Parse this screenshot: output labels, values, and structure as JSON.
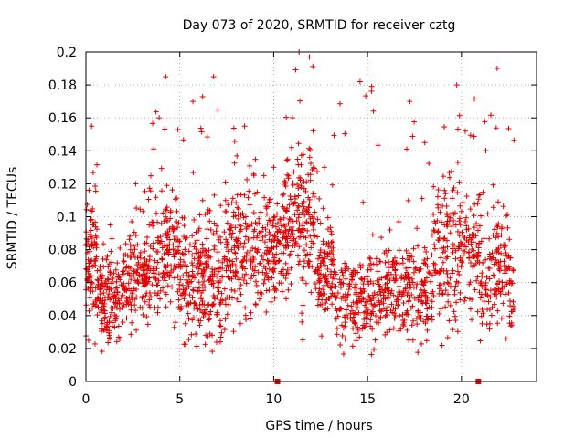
{
  "chart_data": {
    "type": "scatter",
    "title": "Day 073 of 2020, SRMTID for receiver cztg",
    "xlabel": "GPS time / hours",
    "ylabel": "SRMTID / TECUs",
    "xlim": [
      0,
      24
    ],
    "ylim": [
      0,
      0.2
    ],
    "xticks": [
      0,
      5,
      10,
      15,
      20
    ],
    "xtick_labels": [
      "0",
      "5",
      "10",
      "15",
      "20"
    ],
    "yticks": [
      0,
      0.02,
      0.04,
      0.06,
      0.08,
      0.1,
      0.12,
      0.14,
      0.16,
      0.18,
      0.2
    ],
    "ytick_labels": [
      "0",
      "0.02",
      "0.04",
      "0.06",
      "0.08",
      "0.1",
      "0.12",
      "0.14",
      "0.16",
      "0.18",
      "0.2"
    ],
    "grid": true,
    "marker": "+",
    "color": "#e00000",
    "series": [
      {
        "name": "SRMTID",
        "segments": [
          {
            "start": 0.0,
            "end": 0.6,
            "mean": 0.075,
            "spread": 0.025,
            "n": 90,
            "max": 0.155
          },
          {
            "start": 0.6,
            "end": 2.0,
            "mean": 0.05,
            "spread": 0.012,
            "n": 150,
            "max": 0.095
          },
          {
            "start": 2.0,
            "end": 3.3,
            "mean": 0.065,
            "spread": 0.015,
            "n": 140,
            "max": 0.12
          },
          {
            "start": 3.3,
            "end": 5.2,
            "mean": 0.075,
            "spread": 0.02,
            "n": 190,
            "max": 0.185
          },
          {
            "start": 5.2,
            "end": 6.2,
            "mean": 0.06,
            "spread": 0.018,
            "n": 110,
            "max": 0.17
          },
          {
            "start": 6.2,
            "end": 7.4,
            "mean": 0.06,
            "spread": 0.02,
            "n": 130,
            "max": 0.185
          },
          {
            "start": 7.4,
            "end": 9.5,
            "mean": 0.08,
            "spread": 0.02,
            "n": 200,
            "max": 0.155
          },
          {
            "start": 9.5,
            "end": 10.5,
            "mean": 0.08,
            "spread": 0.015,
            "n": 100,
            "max": 0.13
          },
          {
            "start": 10.5,
            "end": 12.2,
            "mean": 0.1,
            "spread": 0.025,
            "n": 200,
            "max": 0.2
          },
          {
            "start": 12.2,
            "end": 13.2,
            "mean": 0.07,
            "spread": 0.015,
            "n": 110,
            "max": 0.13
          },
          {
            "start": 13.2,
            "end": 16.0,
            "mean": 0.05,
            "spread": 0.013,
            "n": 240,
            "max": 0.182
          },
          {
            "start": 16.0,
            "end": 18.5,
            "mean": 0.055,
            "spread": 0.015,
            "n": 220,
            "max": 0.17
          },
          {
            "start": 18.5,
            "end": 21.0,
            "mean": 0.08,
            "spread": 0.022,
            "n": 230,
            "max": 0.18
          },
          {
            "start": 21.0,
            "end": 22.8,
            "mean": 0.065,
            "spread": 0.02,
            "n": 160,
            "max": 0.19
          }
        ]
      }
    ],
    "gap_markers": [
      10.2,
      20.9
    ]
  }
}
